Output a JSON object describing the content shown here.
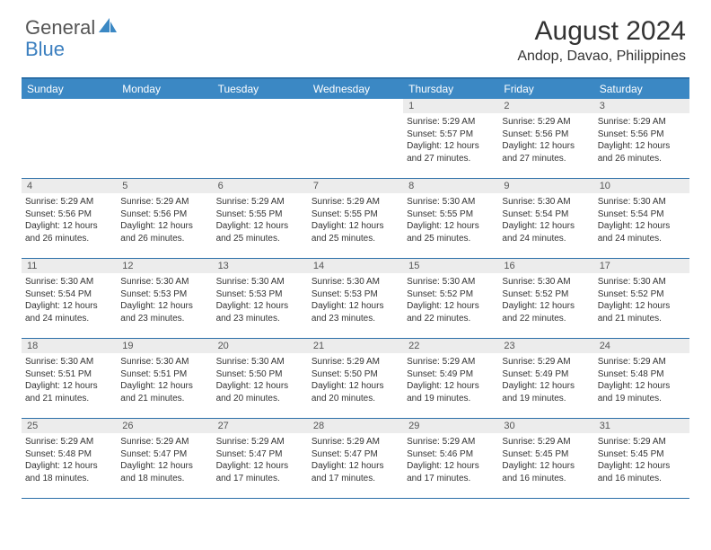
{
  "logo": {
    "text_general": "General",
    "text_blue": "Blue",
    "shape_color": "#3b88c4"
  },
  "title": "August 2024",
  "location": "Andop, Davao, Philippines",
  "colors": {
    "header_bg": "#3b88c4",
    "header_text": "#ffffff",
    "border": "#2b6fa8",
    "daynum_bg": "#ececec",
    "text": "#333333"
  },
  "day_headers": [
    "Sunday",
    "Monday",
    "Tuesday",
    "Wednesday",
    "Thursday",
    "Friday",
    "Saturday"
  ],
  "weeks": [
    [
      {
        "num": "",
        "sunrise": "",
        "sunset": "",
        "daylight": ""
      },
      {
        "num": "",
        "sunrise": "",
        "sunset": "",
        "daylight": ""
      },
      {
        "num": "",
        "sunrise": "",
        "sunset": "",
        "daylight": ""
      },
      {
        "num": "",
        "sunrise": "",
        "sunset": "",
        "daylight": ""
      },
      {
        "num": "1",
        "sunrise": "Sunrise: 5:29 AM",
        "sunset": "Sunset: 5:57 PM",
        "daylight": "Daylight: 12 hours and 27 minutes."
      },
      {
        "num": "2",
        "sunrise": "Sunrise: 5:29 AM",
        "sunset": "Sunset: 5:56 PM",
        "daylight": "Daylight: 12 hours and 27 minutes."
      },
      {
        "num": "3",
        "sunrise": "Sunrise: 5:29 AM",
        "sunset": "Sunset: 5:56 PM",
        "daylight": "Daylight: 12 hours and 26 minutes."
      }
    ],
    [
      {
        "num": "4",
        "sunrise": "Sunrise: 5:29 AM",
        "sunset": "Sunset: 5:56 PM",
        "daylight": "Daylight: 12 hours and 26 minutes."
      },
      {
        "num": "5",
        "sunrise": "Sunrise: 5:29 AM",
        "sunset": "Sunset: 5:56 PM",
        "daylight": "Daylight: 12 hours and 26 minutes."
      },
      {
        "num": "6",
        "sunrise": "Sunrise: 5:29 AM",
        "sunset": "Sunset: 5:55 PM",
        "daylight": "Daylight: 12 hours and 25 minutes."
      },
      {
        "num": "7",
        "sunrise": "Sunrise: 5:29 AM",
        "sunset": "Sunset: 5:55 PM",
        "daylight": "Daylight: 12 hours and 25 minutes."
      },
      {
        "num": "8",
        "sunrise": "Sunrise: 5:30 AM",
        "sunset": "Sunset: 5:55 PM",
        "daylight": "Daylight: 12 hours and 25 minutes."
      },
      {
        "num": "9",
        "sunrise": "Sunrise: 5:30 AM",
        "sunset": "Sunset: 5:54 PM",
        "daylight": "Daylight: 12 hours and 24 minutes."
      },
      {
        "num": "10",
        "sunrise": "Sunrise: 5:30 AM",
        "sunset": "Sunset: 5:54 PM",
        "daylight": "Daylight: 12 hours and 24 minutes."
      }
    ],
    [
      {
        "num": "11",
        "sunrise": "Sunrise: 5:30 AM",
        "sunset": "Sunset: 5:54 PM",
        "daylight": "Daylight: 12 hours and 24 minutes."
      },
      {
        "num": "12",
        "sunrise": "Sunrise: 5:30 AM",
        "sunset": "Sunset: 5:53 PM",
        "daylight": "Daylight: 12 hours and 23 minutes."
      },
      {
        "num": "13",
        "sunrise": "Sunrise: 5:30 AM",
        "sunset": "Sunset: 5:53 PM",
        "daylight": "Daylight: 12 hours and 23 minutes."
      },
      {
        "num": "14",
        "sunrise": "Sunrise: 5:30 AM",
        "sunset": "Sunset: 5:53 PM",
        "daylight": "Daylight: 12 hours and 23 minutes."
      },
      {
        "num": "15",
        "sunrise": "Sunrise: 5:30 AM",
        "sunset": "Sunset: 5:52 PM",
        "daylight": "Daylight: 12 hours and 22 minutes."
      },
      {
        "num": "16",
        "sunrise": "Sunrise: 5:30 AM",
        "sunset": "Sunset: 5:52 PM",
        "daylight": "Daylight: 12 hours and 22 minutes."
      },
      {
        "num": "17",
        "sunrise": "Sunrise: 5:30 AM",
        "sunset": "Sunset: 5:52 PM",
        "daylight": "Daylight: 12 hours and 21 minutes."
      }
    ],
    [
      {
        "num": "18",
        "sunrise": "Sunrise: 5:30 AM",
        "sunset": "Sunset: 5:51 PM",
        "daylight": "Daylight: 12 hours and 21 minutes."
      },
      {
        "num": "19",
        "sunrise": "Sunrise: 5:30 AM",
        "sunset": "Sunset: 5:51 PM",
        "daylight": "Daylight: 12 hours and 21 minutes."
      },
      {
        "num": "20",
        "sunrise": "Sunrise: 5:30 AM",
        "sunset": "Sunset: 5:50 PM",
        "daylight": "Daylight: 12 hours and 20 minutes."
      },
      {
        "num": "21",
        "sunrise": "Sunrise: 5:29 AM",
        "sunset": "Sunset: 5:50 PM",
        "daylight": "Daylight: 12 hours and 20 minutes."
      },
      {
        "num": "22",
        "sunrise": "Sunrise: 5:29 AM",
        "sunset": "Sunset: 5:49 PM",
        "daylight": "Daylight: 12 hours and 19 minutes."
      },
      {
        "num": "23",
        "sunrise": "Sunrise: 5:29 AM",
        "sunset": "Sunset: 5:49 PM",
        "daylight": "Daylight: 12 hours and 19 minutes."
      },
      {
        "num": "24",
        "sunrise": "Sunrise: 5:29 AM",
        "sunset": "Sunset: 5:48 PM",
        "daylight": "Daylight: 12 hours and 19 minutes."
      }
    ],
    [
      {
        "num": "25",
        "sunrise": "Sunrise: 5:29 AM",
        "sunset": "Sunset: 5:48 PM",
        "daylight": "Daylight: 12 hours and 18 minutes."
      },
      {
        "num": "26",
        "sunrise": "Sunrise: 5:29 AM",
        "sunset": "Sunset: 5:47 PM",
        "daylight": "Daylight: 12 hours and 18 minutes."
      },
      {
        "num": "27",
        "sunrise": "Sunrise: 5:29 AM",
        "sunset": "Sunset: 5:47 PM",
        "daylight": "Daylight: 12 hours and 17 minutes."
      },
      {
        "num": "28",
        "sunrise": "Sunrise: 5:29 AM",
        "sunset": "Sunset: 5:47 PM",
        "daylight": "Daylight: 12 hours and 17 minutes."
      },
      {
        "num": "29",
        "sunrise": "Sunrise: 5:29 AM",
        "sunset": "Sunset: 5:46 PM",
        "daylight": "Daylight: 12 hours and 17 minutes."
      },
      {
        "num": "30",
        "sunrise": "Sunrise: 5:29 AM",
        "sunset": "Sunset: 5:45 PM",
        "daylight": "Daylight: 12 hours and 16 minutes."
      },
      {
        "num": "31",
        "sunrise": "Sunrise: 5:29 AM",
        "sunset": "Sunset: 5:45 PM",
        "daylight": "Daylight: 12 hours and 16 minutes."
      }
    ]
  ]
}
